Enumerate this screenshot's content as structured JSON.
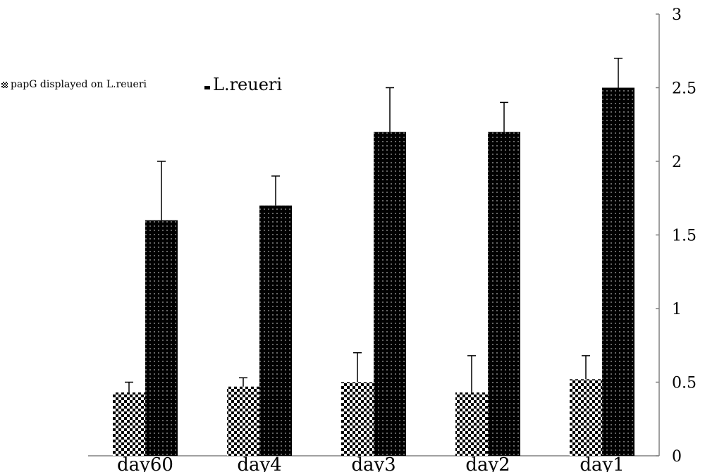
{
  "chart_data": {
    "type": "bar",
    "categories": [
      "day60",
      "day4",
      "day3",
      "day2",
      "day1"
    ],
    "series": [
      {
        "name": "papG displayed on L.reueri",
        "values": [
          0.43,
          0.47,
          0.5,
          0.43,
          0.52
        ],
        "errors": [
          0.07,
          0.06,
          0.2,
          0.25,
          0.16
        ],
        "pattern": "checker"
      },
      {
        "name": "L.reueri",
        "values": [
          1.6,
          1.7,
          2.2,
          2.2,
          2.5
        ],
        "errors": [
          0.4,
          0.2,
          0.3,
          0.2,
          0.2
        ],
        "pattern": "dots"
      }
    ],
    "y_ticks": [
      "0",
      "0.5",
      "1",
      "1.5",
      "2",
      "2.5",
      "3"
    ],
    "ylim": [
      0,
      3
    ],
    "y_axis_side": "right",
    "grid": false,
    "legend_position": "top-left",
    "colors": {
      "bar": "#000000",
      "pattern_light": "#ffffff",
      "axis": "#808080"
    }
  }
}
